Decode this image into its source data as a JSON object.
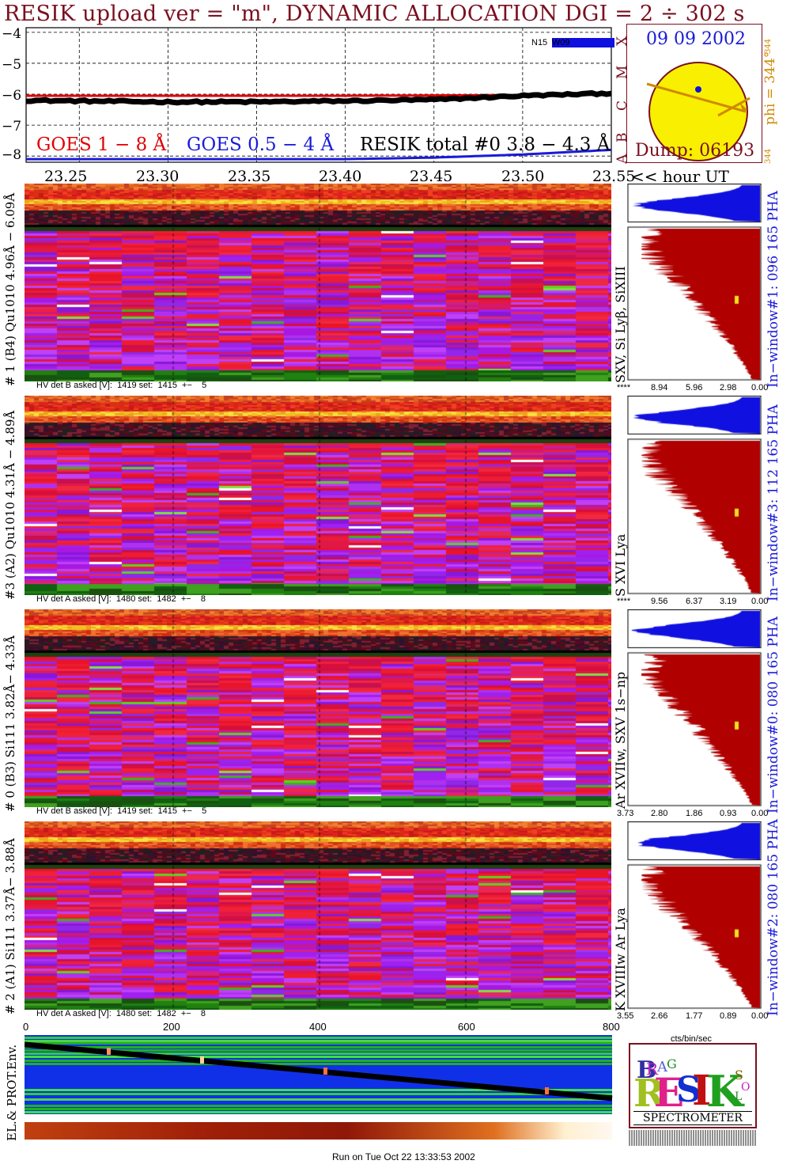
{
  "header": {
    "title": "RESIK upload ver = \"m\", DYNAMIC ALLOCATION  DGI =   2 ÷ 302 s"
  },
  "colors": {
    "goes_long": "#e00000",
    "goes_short": "#1a1ad8",
    "resik_total": "#000000",
    "title": "#7a1020",
    "sun": "#f8f000",
    "accent": "#d08a00",
    "spectrum_fill": "#b00000",
    "spectrum_blue": "#1010e0"
  },
  "lightcurve": {
    "yticks": [
      "−4",
      "−5",
      "−6",
      "−7",
      "−8"
    ],
    "legend_goes_long": "GOES 1 − 8 Å",
    "legend_goes_short": "GOES 0.5 − 4 Å",
    "legend_resik": "RESIK total #0  3.8 − 4.3 Å",
    "class_letters": [
      "A",
      "B",
      "C",
      "M",
      "X"
    ],
    "small_label_left": "N15",
    "small_label_right": "W09"
  },
  "sun_panel": {
    "date": "09 09 2002",
    "phi_label": "phi = 344°",
    "phi_small_top": "344",
    "phi_small_bottom": "344",
    "dump": "Dump: 06193"
  },
  "time_axis": {
    "ticks": [
      "23.25",
      "23.30",
      "23.35",
      "23.40",
      "23.45",
      "23.50",
      "23.55"
    ],
    "unit_label": "<< hour UT"
  },
  "channels": [
    {
      "left_label": "# 1 (B4) Qu1010 4.96Å − 6.09Å",
      "right_label": "In−window#1:  096 165 PHA",
      "line_label": "SXV, Si Lyβ, SiXIII",
      "hv": "HV det B asked [V]:  1419 set:  1415  +−    5",
      "scale": [
        "****",
        "8.94",
        "5.96",
        "2.98",
        "0.00"
      ]
    },
    {
      "left_label": "#3 (A2) Qu1010  4.31Å − 4.89Å",
      "right_label": "In−window#3:  112 165 PHA",
      "line_label": "S XVI Lya",
      "hv": "HV det A asked [V]:  1480 set:  1482  +−    8",
      "scale": [
        "****",
        "9.56",
        "6.37",
        "3.19",
        "0.00"
      ]
    },
    {
      "left_label": "# 0 (B3) Si111  3.82Å− 4.33Å",
      "right_label": "In−window#0:  080 165 PHA",
      "line_label": "Ar XVIIw,  SXV 1s−np",
      "hv": "HV det B asked [V]:  1419 set:  1415  +−    5",
      "scale": [
        "3.73",
        "2.80",
        "1.86",
        "0.93",
        "0.00"
      ]
    },
    {
      "left_label": "# 2 (A1) Si111  3.37Å− 3.88Å",
      "right_label": "In−window#2:  080 165 PHA",
      "line_label": "K XVIIIw  Ar Lya",
      "hv": "HV det A asked [V]:  1480 set:  1482  +−    8",
      "scale": [
        "3.55",
        "2.66",
        "1.77",
        "0.89",
        "0.00"
      ]
    }
  ],
  "pha_unit": "cts/bin/sec",
  "bottom_axis": {
    "ticks": [
      "0",
      "200",
      "400",
      "600",
      "800"
    ]
  },
  "env_label": "EL.& PROT.Env.",
  "logo": {
    "letters": "BRAG RESIK SOLAR",
    "caption": "SPECTROMETER"
  },
  "footer": "Run on Tue Oct 22 13:33:53 2002",
  "chart_data": [
    {
      "type": "line",
      "title": "RESIK upload ver = \"m\", DYNAMIC ALLOCATION  DGI =   2 ÷ 302 s",
      "xlabel": "hour UT",
      "ylabel": "",
      "x": [
        23.22,
        23.25,
        23.3,
        23.35,
        23.4,
        23.45,
        23.5,
        23.55
      ],
      "xlim": [
        23.22,
        23.55
      ],
      "ylim": [
        -8.2,
        -3.85
      ],
      "series": [
        {
          "name": "GOES 1 − 8 Å",
          "values": [
            -6.05,
            -6.05,
            -6.05,
            -6.05,
            -6.05,
            -6.04,
            -6.03,
            -6.02
          ]
        },
        {
          "name": "RESIK total #0  3.8 − 4.3 Å",
          "values": [
            -6.2,
            -6.22,
            -6.25,
            -6.25,
            -6.22,
            -6.18,
            -6.05,
            -5.97
          ]
        },
        {
          "name": "GOES 0.5 − 4 Å",
          "values": [
            -8.1,
            -8.1,
            -8.1,
            -8.1,
            -8.1,
            -8.05,
            -7.95,
            -7.8
          ]
        }
      ]
    }
  ]
}
